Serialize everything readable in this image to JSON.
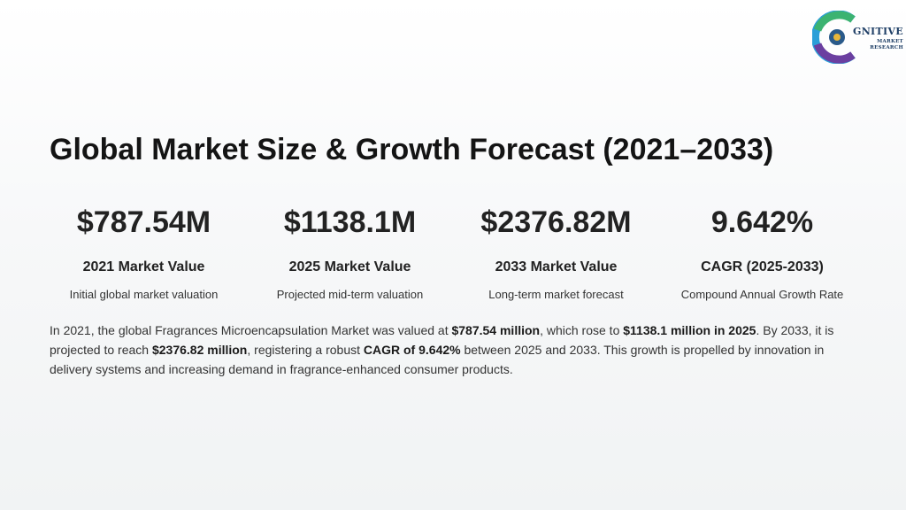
{
  "logo": {
    "main_text": "GNITIVE",
    "sub_line1": "MARKET",
    "sub_line2": "RESEARCH",
    "colors": [
      "#2b9fd8",
      "#3cb371",
      "#e8b63a",
      "#6b3fa0"
    ]
  },
  "title": "Global Market Size & Growth Forecast (2021–2033)",
  "stats": [
    {
      "value": "$787.54M",
      "label": "2021 Market Value",
      "desc": "Initial global market valuation"
    },
    {
      "value": "$1138.1M",
      "label": "2025 Market Value",
      "desc": "Projected mid-term valuation"
    },
    {
      "value": "$2376.82M",
      "label": "2033 Market Value",
      "desc": "Long-term market forecast"
    },
    {
      "value": "9.642%",
      "label": "CAGR (2025-2033)",
      "desc": "Compound Annual Growth Rate"
    }
  ],
  "summary": {
    "t1": "In 2021, the global Fragrances Microencapsulation Market was valued at ",
    "b1": "$787.54 million",
    "t2": ", which rose to ",
    "b2": "$1138.1 million in 2025",
    "t3": ". By 2033, it is projected to reach ",
    "b3": "$2376.82 million",
    "t4": ", registering a robust ",
    "b4": "CAGR of 9.642%",
    "t5": " between 2025 and 2033. This growth is propelled by innovation in delivery systems and increasing demand in fragrance-enhanced consumer products."
  }
}
